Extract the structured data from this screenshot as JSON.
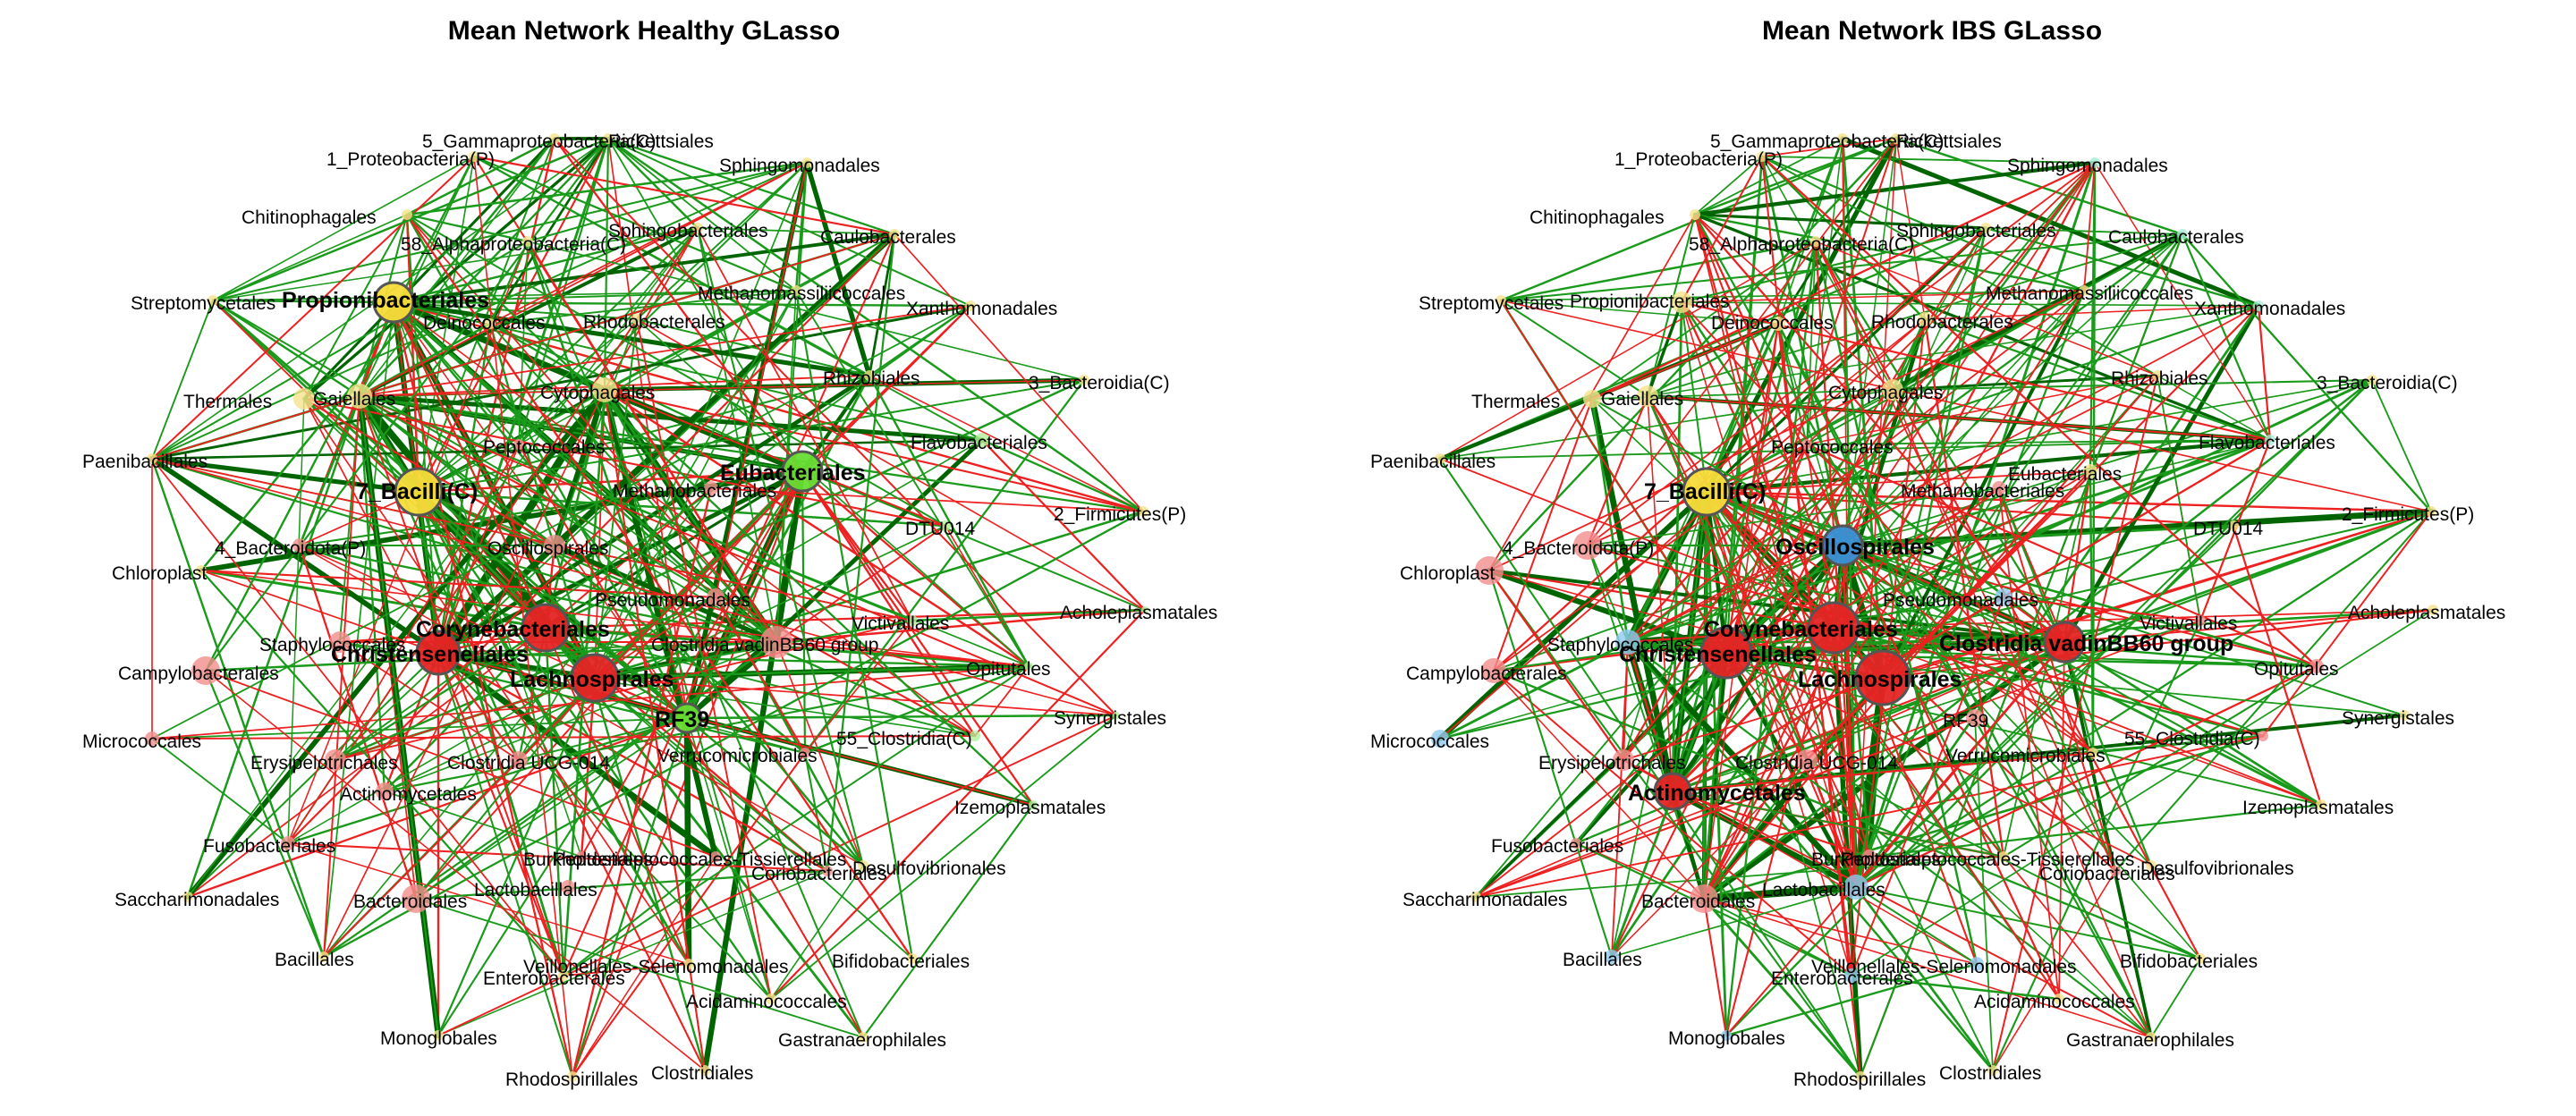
{
  "colors": {
    "positive_edge": "#1a9a1a",
    "strong_positive_edge": "#006400",
    "negative_edge": "#ee2020",
    "hub_yellow": "#f7dc3a",
    "node_yellow": "#f5e38c",
    "hub_green": "#66dd33",
    "node_green": "#b2ee99",
    "hub_red": "#e52424",
    "node_red": "#f28d8d",
    "node_blue": "#8ec9f0",
    "hub_blue": "#3a8fd6",
    "node_cyan": "#a9ecd8"
  },
  "networks": [
    {
      "title": "Mean Network Healthy GLasso",
      "hub_nodes": [
        "Propionibacteriales",
        "7_Bacilli(C)",
        "Eubacteriales",
        "Corynebacteriales",
        "Christensenellales",
        "Lachnospirales",
        "RF39"
      ],
      "labels": [
        "5_Gammaproteobacteria(C)",
        "Rickettsiales",
        "1_Proteobacteria(P)",
        "Sphingomonadales",
        "Chitinophagales",
        "Sphingobacteriales",
        "58_Alphaproteobacteria(C)",
        "Caulobacterales",
        "Streptomycetales",
        "Propionibacteriales",
        "Methanomassiliicoccales",
        "Xanthomonadales",
        "Deinococcales",
        "Rhodobacterales",
        "Thermales",
        "Gaiellales",
        "Cytophagales",
        "Rhizobiales",
        "3_Bacteroidia(C)",
        "Flavobacteriales",
        "Paenibacillales",
        "Peptococcales",
        "Eubacteriales",
        "7_Bacilli(C)",
        "Methanobacteriales",
        "2_Firmicutes(P)",
        "DTU014",
        "4_Bacteroidota(P)",
        "Oscillospirales",
        "Chloroplast",
        "Pseudomonadales",
        "Acholeplasmatales",
        "Corynebacteriales",
        "Victivallales",
        "Staphylococcales",
        "Clostridia vadinBB60 group",
        "Christensenellales",
        "Campylobacterales",
        "Opitutales",
        "Lachnospirales",
        "RF39",
        "Synergistales",
        "Micrococcales",
        "55_Clostridia(C)",
        "Erysipelotrichales",
        "Clostridia UCG-014",
        "Verrucomicrobiales",
        "Actinomycetales",
        "Izemoplasmatales",
        "Fusobacteriales",
        "Burkholderiales",
        "Peptostreptococcales-Tissierellales",
        "Coriobacteriales",
        "Desulfovibrionales",
        "Lactobacillales",
        "Saccharimonadales",
        "Bacteroidales",
        "Bacillales",
        "Bifidobacteriales",
        "Veillonellales-Selenomonadales",
        "Enterobacterales",
        "Acidaminococcales",
        "Monoglobales",
        "Gastranaerophilales",
        "Clostridiales",
        "Rhodospirillales"
      ]
    },
    {
      "title": "Mean Network IBS GLasso",
      "hub_nodes": [
        "7_Bacilli(C)",
        "Oscillospirales",
        "Corynebacteriales",
        "Christensenellales",
        "Clostridia vadinBB60 group",
        "Lachnospirales",
        "Actinomycetales"
      ],
      "labels": [
        "5_Gammaproteobacteria(C)",
        "Rickettsiales",
        "1_Proteobacteria(P)",
        "Sphingomonadales",
        "Chitinophagales",
        "Sphingobacteriales",
        "58_Alphaproteobacteria(C)",
        "Caulobacterales",
        "Streptomycetales",
        "Propionibacteriales",
        "Methanomassiliicoccales",
        "Xanthomonadales",
        "Deinococcales",
        "Rhodobacterales",
        "Thermales",
        "Gaiellales",
        "Cytophagales",
        "Rhizobiales",
        "3_Bacteroidia(C)",
        "Flavobacteriales",
        "Paenibacillales",
        "Peptococcales",
        "Eubacteriales",
        "7_Bacilli(C)",
        "Methanobacteriales",
        "2_Firmicutes(P)",
        "DTU014",
        "4_Bacteroidota(P)",
        "Oscillospirales",
        "Chloroplast",
        "Pseudomonadales",
        "Acholeplasmatales",
        "Corynebacteriales",
        "Victivallales",
        "Staphylococcales",
        "Clostridia vadinBB60 group",
        "Christensenellales",
        "Campylobacterales",
        "Opitutales",
        "Lachnospirales",
        "RF39",
        "Synergistales",
        "Micrococcales",
        "55_Clostridia(C)",
        "Erysipelotrichales",
        "Clostridia UCG-014",
        "Verrucomicrobiales",
        "Actinomycetales",
        "Izemoplasmatales",
        "Fusobacteriales",
        "Burkholderiales",
        "Peptostreptococcales-Tissierellales",
        "Coriobacteriales",
        "Desulfovibrionales",
        "Lactobacillales",
        "Saccharimonadales",
        "Bacteroidales",
        "Bacillales",
        "Bifidobacteriales",
        "Veillonellales-Selenomonadales",
        "Enterobacterales",
        "Acidaminococcales",
        "Monoglobales",
        "Gastranaerophilales",
        "Clostridiales",
        "Rhodospirillales"
      ]
    }
  ]
}
